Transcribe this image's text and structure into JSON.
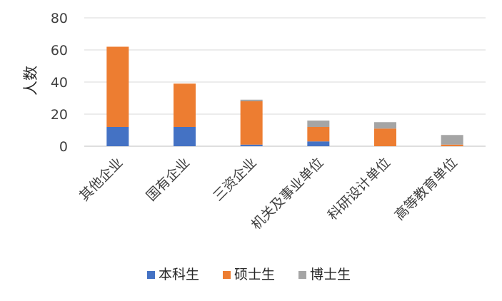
{
  "chart_data": {
    "type": "bar",
    "stacked": true,
    "title": "",
    "xlabel": "",
    "ylabel": "人数",
    "ylim": [
      0,
      80
    ],
    "yticks": [
      0,
      20,
      40,
      60,
      80
    ],
    "grid": true,
    "legend_position": "bottom",
    "categories": [
      "其他企业",
      "国有企业",
      "三资企业",
      "机关及事业单位",
      "科研设计单位",
      "高等教育单位"
    ],
    "series": [
      {
        "name": "本科生",
        "color": "#4472C4",
        "values": [
          12,
          12,
          1,
          3,
          0,
          0
        ]
      },
      {
        "name": "硕士生",
        "color": "#ED7D31",
        "values": [
          50,
          27,
          27,
          9,
          11,
          1
        ]
      },
      {
        "name": "博士生",
        "color": "#A5A5A5",
        "values": [
          0,
          0,
          1,
          4,
          4,
          6
        ]
      }
    ]
  }
}
